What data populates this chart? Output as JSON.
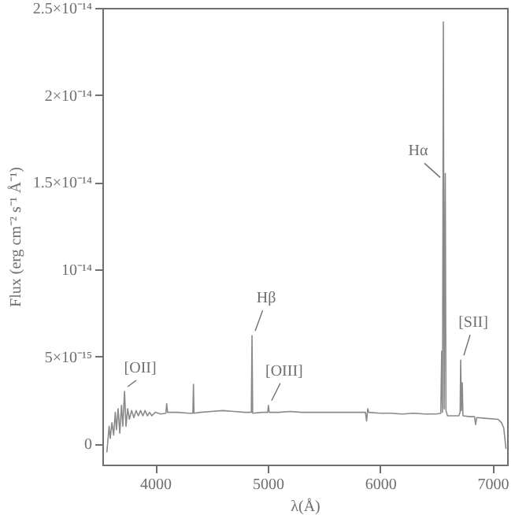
{
  "chart_data": {
    "type": "line",
    "xlabel": "λ(Å)",
    "ylabel": "Flux (erg cm⁻² s⁻¹ Å⁻¹)",
    "x": [
      3570,
      3590,
      3600,
      3615,
      3630,
      3645,
      3655,
      3670,
      3685,
      3700,
      3712,
      3727,
      3740,
      3755,
      3770,
      3790,
      3810,
      3830,
      3850,
      3870,
      3890,
      3910,
      3930,
      3950,
      3970,
      4000,
      4050,
      4095,
      4102,
      4110,
      4200,
      4300,
      4335,
      4340,
      4345,
      4400,
      4500,
      4600,
      4700,
      4800,
      4855,
      4861,
      4867,
      4950,
      5000,
      5007,
      5014,
      5100,
      5200,
      5300,
      5400,
      5500,
      5600,
      5700,
      5800,
      5870,
      5880,
      5890,
      5900,
      6000,
      6100,
      6200,
      6300,
      6400,
      6500,
      6540,
      6548,
      6555,
      6563,
      6570,
      6576,
      6580,
      6586,
      6600,
      6650,
      6700,
      6712,
      6717,
      6723,
      6731,
      6737,
      6800,
      6840,
      6850,
      6860,
      6950,
      7050,
      7080,
      7100,
      7120
    ],
    "series": [
      {
        "color": "#8a8a8a",
        "values": [
          -5e-16,
          1e-15,
          3e-16,
          1.2e-15,
          5e-16,
          1.8e-15,
          8e-16,
          2e-15,
          6e-16,
          2.2e-15,
          1e-15,
          3e-15,
          1e-15,
          2e-15,
          1.4e-15,
          1.9e-15,
          1.5e-15,
          1.9e-15,
          1.6e-15,
          1.9e-15,
          1.6e-15,
          1.9e-15,
          1.6e-15,
          1.8e-15,
          1.6e-15,
          1.8e-15,
          1.7e-15,
          1.75e-15,
          2.3e-15,
          1.8e-15,
          1.8e-15,
          1.75e-15,
          1.75e-15,
          3.4e-15,
          1.75e-15,
          1.8e-15,
          1.85e-15,
          1.9e-15,
          1.85e-15,
          1.8e-15,
          1.8e-15,
          6.2e-15,
          1.75e-15,
          1.8e-15,
          1.8e-15,
          2.2e-15,
          1.8e-15,
          1.8e-15,
          1.85e-15,
          1.8e-15,
          1.8e-15,
          1.8e-15,
          1.8e-15,
          1.8e-15,
          1.8e-15,
          1.8e-15,
          1.3e-15,
          2e-15,
          1.8e-15,
          1.75e-15,
          1.75e-15,
          1.7e-15,
          1.75e-15,
          1.7e-15,
          1.7e-15,
          1.75e-15,
          5.3e-15,
          1.8e-15,
          2.42e-14,
          2e-15,
          1.05e-14,
          1.55e-14,
          1.9e-15,
          1.6e-15,
          1.6e-15,
          1.6e-15,
          1.8e-15,
          4.8e-15,
          1.9e-15,
          3.5e-15,
          1.6e-15,
          1.55e-15,
          1.55e-15,
          1.1e-15,
          1.5e-15,
          1.45e-15,
          1.4e-15,
          1.2e-15,
          9e-16,
          -3e-16
        ]
      }
    ],
    "xlim": [
      3530,
      7130
    ],
    "xticks": [
      4000,
      5000,
      6000,
      7000
    ],
    "ylim": [
      -1.2e-15,
      2.5e-14
    ],
    "yticks": [
      0,
      {
        "value": 5e-15,
        "label": "5×10⁻¹⁵"
      },
      {
        "value": 1e-14,
        "label": "10⁻¹⁴"
      },
      {
        "value": 1.5e-14,
        "label": "1.5×10⁻¹⁴"
      },
      {
        "value": 2e-14,
        "label": "2×10⁻¹⁴"
      },
      {
        "value": 2.5e-14,
        "label": "2.5×10⁻¹⁴"
      }
    ],
    "annotations": [
      {
        "text": "[OII]",
        "x": 3727,
        "y": 3e-15
      },
      {
        "text": "Hβ",
        "x": 4861,
        "y": 6.2e-15
      },
      {
        "text": "[OIII]",
        "x": 5007,
        "y": 2.2e-15
      },
      {
        "text": "Hα",
        "x": 6563,
        "y": 1.5e-14
      },
      {
        "text": "[SII]",
        "x": 6717,
        "y": 4.8e-15
      }
    ],
    "grid": false,
    "marker": "none",
    "line_style": "solid"
  }
}
